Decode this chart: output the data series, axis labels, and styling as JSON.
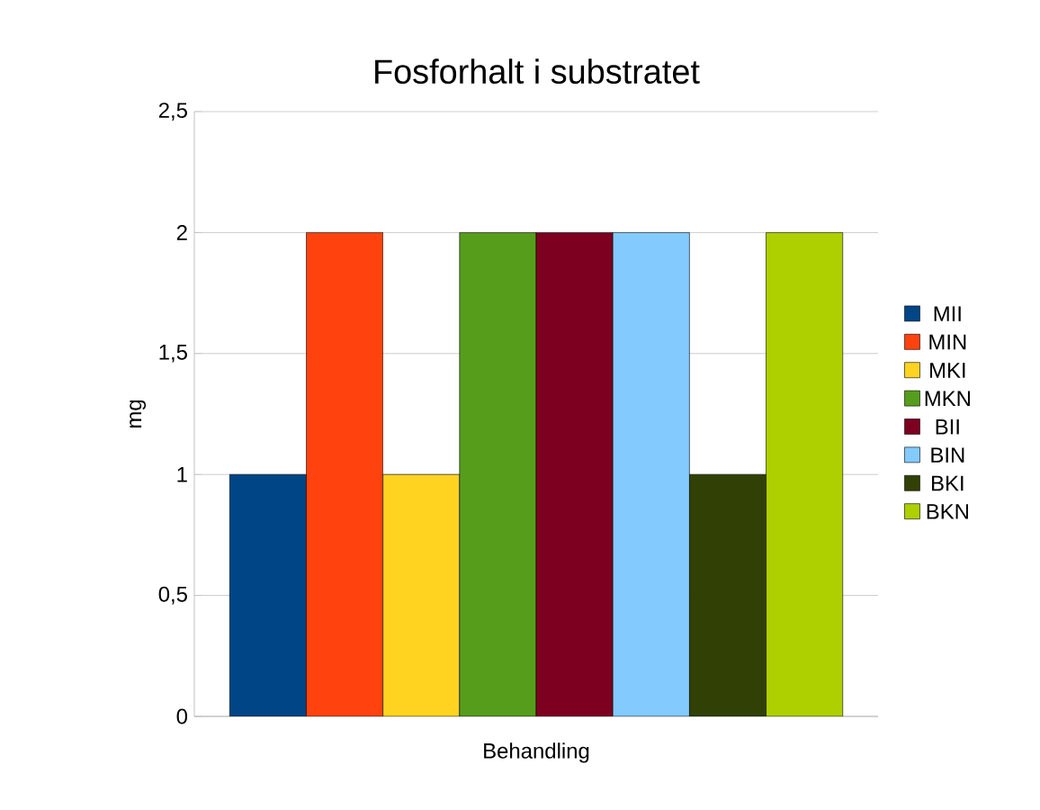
{
  "chart_data": {
    "type": "bar",
    "title": "Fosforhalt i substratet",
    "xlabel": "Behandling",
    "ylabel": "mg",
    "categories": [
      null
    ],
    "series": [
      {
        "name": "MII",
        "color": "#004586",
        "values": [
          1
        ]
      },
      {
        "name": "MIN",
        "color": "#ff420e",
        "values": [
          2
        ]
      },
      {
        "name": "MKI",
        "color": "#ffd320",
        "values": [
          1
        ]
      },
      {
        "name": "MKN",
        "color": "#579d1c",
        "values": [
          2
        ]
      },
      {
        "name": "BII",
        "color": "#7e0021",
        "values": [
          2
        ]
      },
      {
        "name": "BIN",
        "color": "#83caff",
        "values": [
          2
        ]
      },
      {
        "name": "BKI",
        "color": "#314004",
        "values": [
          1
        ]
      },
      {
        "name": "BKN",
        "color": "#aecf00",
        "values": [
          2
        ]
      }
    ],
    "ylim": [
      0,
      2.5
    ],
    "yticks": [
      0,
      {
        "value": 0.5,
        "label": "0,5"
      },
      1,
      {
        "value": 1.5,
        "label": "1,5"
      },
      2,
      {
        "value": 2.5,
        "label": "2,5"
      }
    ],
    "grid": "y",
    "legend": "right"
  }
}
